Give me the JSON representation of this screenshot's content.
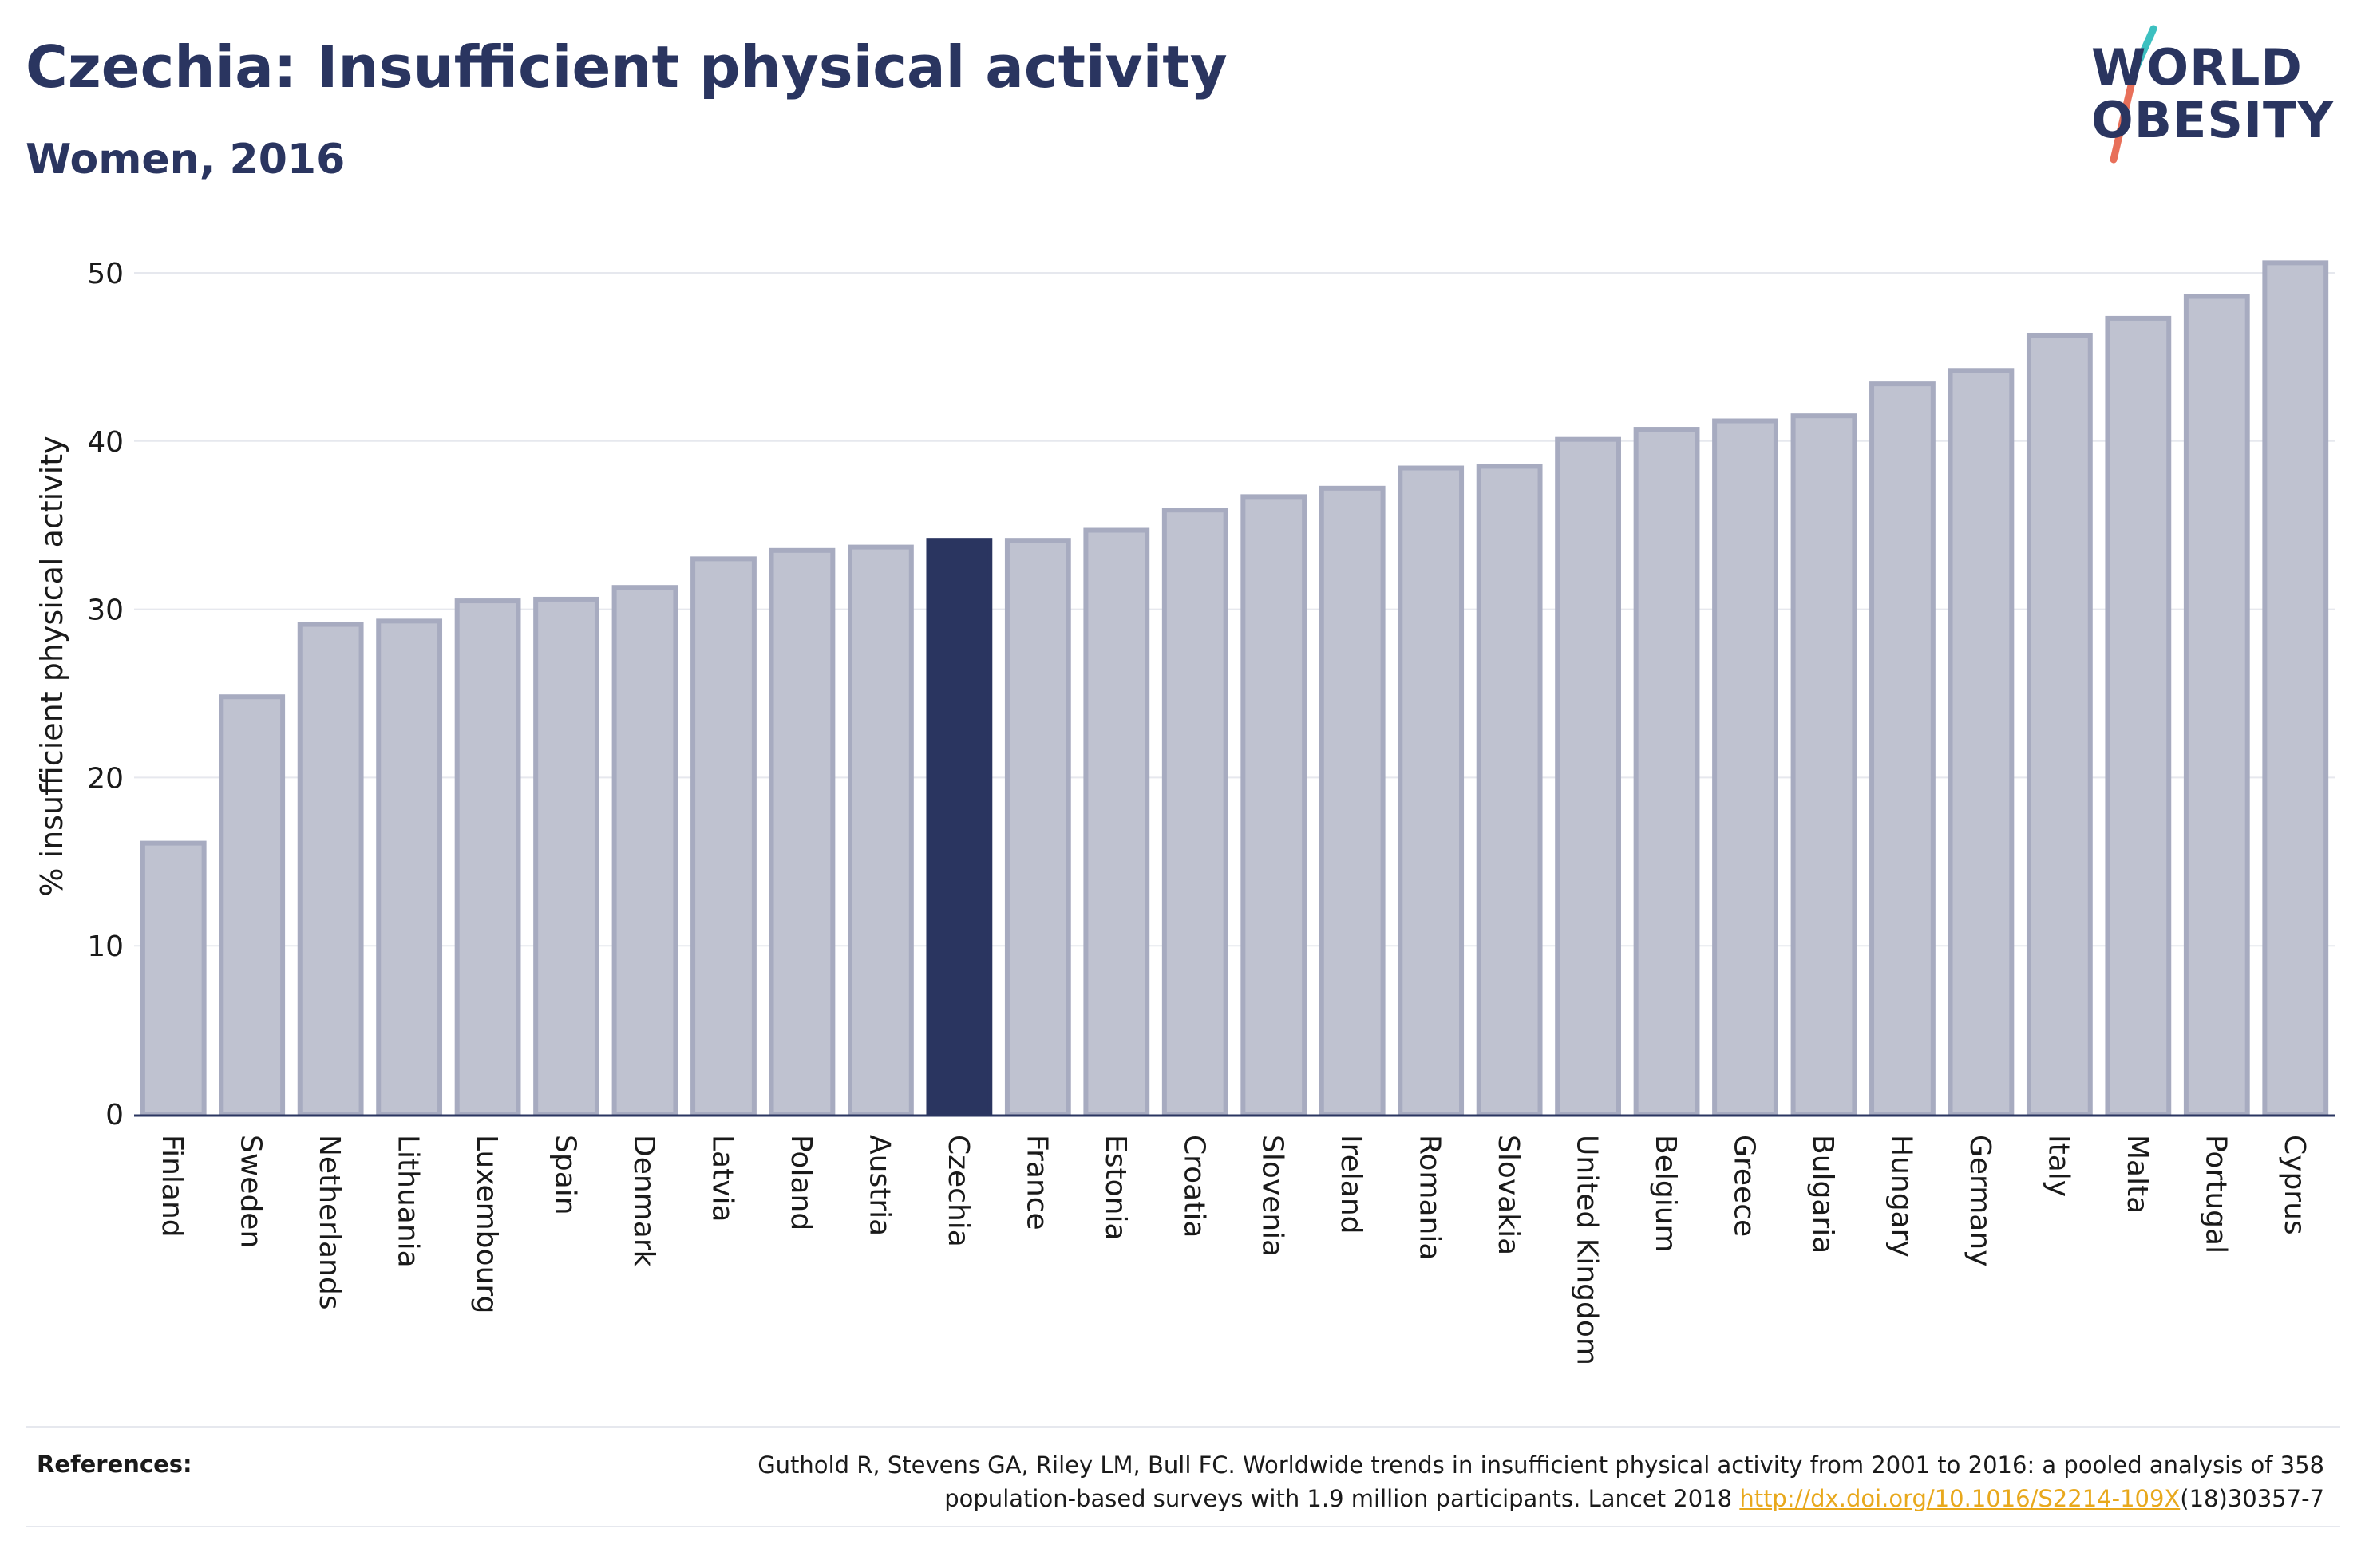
{
  "header": {
    "title": "Czechia: Insufficient physical activity",
    "subtitle": "Women, 2016"
  },
  "logo": {
    "line1": "WORLD",
    "line2": "OBESITY",
    "slash_colors": [
      "#3cc0c0",
      "#e8705a"
    ]
  },
  "colors": {
    "bar_default_fill": "#bfc2d0",
    "bar_default_stroke": "#a7abc0",
    "bar_highlight": "#2a3560",
    "grid": "#e6e8ee",
    "axis": "#2a3560",
    "link": "#e8a81c"
  },
  "chart_data": {
    "type": "bar",
    "title": "Czechia: Insufficient physical activity",
    "subtitle": "Women, 2016",
    "ylabel": "% insufficient physical activity",
    "xlabel": "",
    "ylim": [
      0,
      52
    ],
    "yticks": [
      0,
      10,
      20,
      30,
      40,
      50
    ],
    "grid": true,
    "highlight": "Czechia",
    "categories": [
      "Finland",
      "Sweden",
      "Netherlands",
      "Lithuania",
      "Luxembourg",
      "Spain",
      "Denmark",
      "Latvia",
      "Poland",
      "Austria",
      "Czechia",
      "France",
      "Estonia",
      "Croatia",
      "Slovenia",
      "Ireland",
      "Romania",
      "Slovakia",
      "United Kingdom",
      "Belgium",
      "Greece",
      "Bulgaria",
      "Hungary",
      "Germany",
      "Italy",
      "Malta",
      "Portugal",
      "Cyprus"
    ],
    "values": [
      16.1,
      24.8,
      29.1,
      29.3,
      30.5,
      30.6,
      31.3,
      33.0,
      33.5,
      33.7,
      34.1,
      34.1,
      34.7,
      35.9,
      36.7,
      37.2,
      38.4,
      38.5,
      40.1,
      40.7,
      41.2,
      41.5,
      43.4,
      44.2,
      46.3,
      47.3,
      48.6,
      50.6
    ]
  },
  "references": {
    "label": "References:",
    "text_line1": "Guthold R, Stevens GA, Riley LM, Bull FC. Worldwide trends in insufficient physical activity from 2001 to 2016: a pooled analysis of 358",
    "text_line2_pre": "population-based surveys with 1.9 million participants. Lancet 2018 ",
    "link": "http://dx.doi.org/10.1016/S2214-109X",
    "text_line2_post": "(18)30357-7"
  }
}
